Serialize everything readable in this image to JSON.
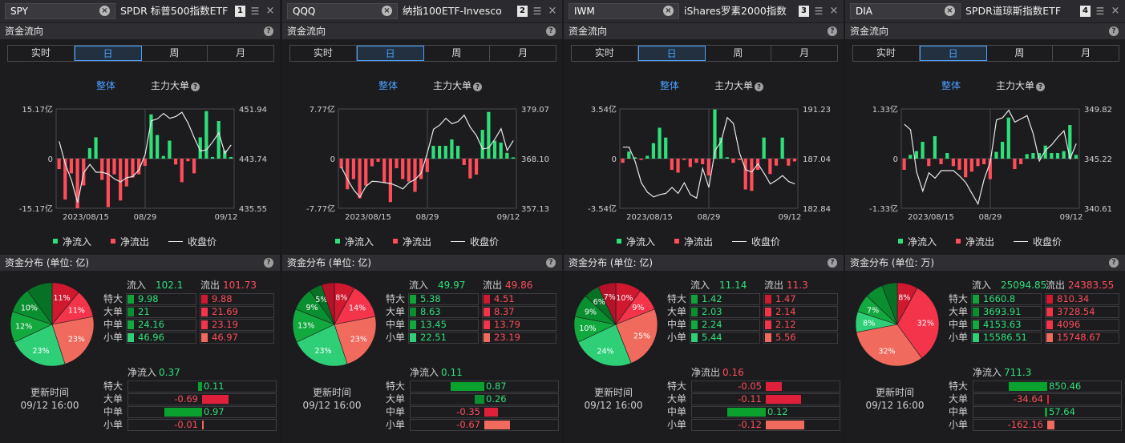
{
  "colors": {
    "inflow": "#2ee07a",
    "outflow": "#ff4d5a",
    "accent": "#4aa0ff",
    "close_line": "#e8e8e8"
  },
  "common": {
    "periods": [
      "实时",
      "日",
      "周",
      "月"
    ],
    "active_period": 1,
    "view_all": "整体",
    "view_main": "主力大单",
    "legend_in": "净流入",
    "legend_out": "净流出",
    "legend_close": "收盘价",
    "flow_title": "资金流向",
    "rows": [
      "特大",
      "大单",
      "中单",
      "小单"
    ],
    "in_label": "流入",
    "out_label": "流出",
    "update_label": "更新时间",
    "update_value": "09/12 16:00",
    "x_labels": [
      "2023/08/15",
      "08/29",
      "09/12"
    ],
    "icons": {
      "clear": "clear-icon",
      "help": "help-icon",
      "adjust": "adjust-icon",
      "close": "close-icon"
    }
  },
  "panels": [
    {
      "symbol": "SPY",
      "name": "SPDR 标普500指数ETF",
      "index": "1",
      "chart_data": {
        "type": "bar+line",
        "y_left": [
          "15.17亿",
          "0",
          "-15.17亿"
        ],
        "y_right": [
          "451.94",
          "443.74",
          "435.55"
        ],
        "y_range": [
          -15.17,
          15.17
        ],
        "close_range": [
          435.55,
          451.94
        ],
        "values": [
          -3.2,
          -12.5,
          -4.5,
          -15.5,
          -8.2,
          3.2,
          6.5,
          -6.5,
          -14.8,
          -4.8,
          -12.8,
          -8.5,
          -5.8,
          -4.8,
          -2.2,
          13.5,
          7.2,
          0.8,
          5.5,
          -1.8,
          -7.2,
          -0.8,
          -4.5,
          6.5,
          14.5,
          0.5,
          11.5,
          2.5,
          0.5
        ],
        "close": [
          446.6,
          442.8,
          440.2,
          436.5,
          441.4,
          442.8,
          441.5,
          441.5,
          441.2,
          440.4,
          439.9,
          440.6,
          440.8,
          441.9,
          444.4,
          450.0,
          450.3,
          451.2,
          450.4,
          450.7,
          451.4,
          449.6,
          447.2,
          445.0,
          445.2,
          446.5,
          448.0,
          444.6,
          446.0
        ]
      },
      "dist": {
        "title": "资金分布 (单位: 亿)",
        "in_total": "102.1",
        "out_total": "101.73",
        "in": [
          "9.98",
          "21",
          "24.16",
          "46.96"
        ],
        "out": [
          "9.88",
          "21.69",
          "23.19",
          "46.97"
        ],
        "pie": [
          {
            "p": 11,
            "label": "11%"
          },
          {
            "p": 11,
            "label": "11%"
          },
          {
            "p": 23,
            "label": "23%"
          },
          {
            "p": 23,
            "label": "23%"
          },
          {
            "p": 12,
            "label": "12%"
          },
          {
            "p": 10,
            "label": "10%"
          },
          {
            "p": 10,
            "label": ""
          }
        ],
        "net_label": "净流入",
        "net_value": "0.37",
        "net": [
          {
            "v": 0.11,
            "t": "0.11"
          },
          {
            "v": -0.69,
            "t": "-0.69"
          },
          {
            "v": 0.97,
            "t": "0.97"
          },
          {
            "v": -0.01,
            "t": "-0.01"
          }
        ],
        "net_max": 1.0
      }
    },
    {
      "symbol": "QQQ",
      "name": "纳指100ETF-Invesco",
      "index": "2",
      "chart_data": {
        "type": "bar+line",
        "y_left": [
          "7.77亿",
          "0",
          "-7.77亿"
        ],
        "y_right": [
          "379.07",
          "368.10",
          "357.13"
        ],
        "y_range": [
          -7.77,
          7.77
        ],
        "close_range": [
          357.13,
          379.07
        ],
        "values": [
          -1.5,
          -4.8,
          -3.2,
          -6.2,
          -4.2,
          -1.2,
          -0.5,
          -3.8,
          -6.8,
          -1.5,
          -3.2,
          -3.6,
          -5.2,
          -3.2,
          -2.1,
          2.0,
          2.0,
          2.0,
          3.0,
          2.0,
          -1.0,
          -3.1,
          -2.5,
          4.5,
          7.3,
          2.8,
          2.5,
          0.9,
          0.2
        ],
        "close": [
          366.2,
          363.5,
          361.2,
          359.6,
          362.0,
          363.1,
          363.0,
          362.8,
          362.6,
          362.1,
          361.4,
          362.8,
          363.5,
          364.9,
          369.4,
          374.6,
          375.5,
          377.0,
          375.8,
          376.3,
          377.7,
          375.0,
          373.2,
          370.2,
          370.5,
          372.4,
          374.7,
          369.9,
          372.1
        ]
      },
      "dist": {
        "title": "资金分布 (单位: 亿)",
        "in_total": "49.97",
        "out_total": "49.86",
        "in": [
          "5.38",
          "8.63",
          "13.45",
          "22.51"
        ],
        "out": [
          "4.51",
          "8.37",
          "13.79",
          "23.19"
        ],
        "pie": [
          {
            "p": 8,
            "label": "8%"
          },
          {
            "p": 14,
            "label": "14%"
          },
          {
            "p": 23,
            "label": "23%"
          },
          {
            "p": 23,
            "label": "23%"
          },
          {
            "p": 13,
            "label": "13%"
          },
          {
            "p": 9,
            "label": "9%"
          },
          {
            "p": 5,
            "label": "5%"
          },
          {
            "p": 5,
            "label": ""
          }
        ],
        "net_label": "净流入",
        "net_value": "0.11",
        "net": [
          {
            "v": 0.87,
            "t": "0.87"
          },
          {
            "v": 0.26,
            "t": "0.26"
          },
          {
            "v": -0.35,
            "t": "-0.35"
          },
          {
            "v": -0.67,
            "t": "-0.67"
          }
        ],
        "net_max": 1.0
      }
    },
    {
      "symbol": "IWM",
      "name": "iShares罗素2000指数",
      "index": "3",
      "chart_data": {
        "type": "bar+line",
        "y_left": [
          "3.54亿",
          "0",
          "-3.54亿"
        ],
        "y_right": [
          "191.23",
          "187.04",
          "182.84"
        ],
        "y_range": [
          -3.54,
          3.54
        ],
        "close_range": [
          182.84,
          191.23
        ],
        "values": [
          -0.3,
          0.5,
          0.1,
          -0.1,
          0.2,
          1.1,
          2.2,
          1.5,
          -0.8,
          -1.0,
          -0.1,
          -0.6,
          -0.3,
          -0.4,
          -1.2,
          3.5,
          1.5,
          0.1,
          -0.3,
          -0.1,
          -2.2,
          -2.3,
          -0.8,
          1.5,
          -1.1,
          -0.5,
          1.5,
          -0.5,
          -0.2
        ],
        "close": [
          188.0,
          188.0,
          186.8,
          185.0,
          184.2,
          183.8,
          184.0,
          184.1,
          184.6,
          184.1,
          185.0,
          184.0,
          183.7,
          186.2,
          184.6,
          187.7,
          188.5,
          190.5,
          190.0,
          187.5,
          186.1,
          185.9,
          186.6,
          185.8,
          184.9,
          185.2,
          185.6,
          185.1,
          184.9
        ]
      },
      "dist": {
        "title": "资金分布 (单位: 亿)",
        "in_total": "11.14",
        "out_total": "11.3",
        "in": [
          "1.42",
          "2.03",
          "2.24",
          "5.44"
        ],
        "out": [
          "1.47",
          "2.14",
          "2.12",
          "5.56"
        ],
        "pie": [
          {
            "p": 10,
            "label": "10%"
          },
          {
            "p": 9,
            "label": "9%"
          },
          {
            "p": 25,
            "label": "25%"
          },
          {
            "p": 24,
            "label": "24%"
          },
          {
            "p": 10,
            "label": "10%"
          },
          {
            "p": 9,
            "label": "9%"
          },
          {
            "p": 6,
            "label": "6%"
          },
          {
            "p": 7,
            "label": "7%"
          }
        ],
        "net_label": "净流出",
        "net_value": "0.16",
        "net": [
          {
            "v": -0.05,
            "t": "-0.05"
          },
          {
            "v": -0.11,
            "t": "-0.11"
          },
          {
            "v": 0.12,
            "t": "0.12"
          },
          {
            "v": -0.12,
            "t": "-0.12"
          }
        ],
        "net_max": 0.12
      }
    },
    {
      "symbol": "DIA",
      "name": "SPDR道琼斯指数ETF",
      "index": "4",
      "chart_data": {
        "type": "bar+line",
        "y_left": [
          "1.33亿",
          "0",
          "-1.33亿"
        ],
        "y_right": [
          "349.82",
          "345.22",
          "340.61"
        ],
        "y_range": [
          -1.33,
          1.33
        ],
        "close_range": [
          340.61,
          349.82
        ],
        "values": [
          -0.3,
          0.1,
          0.2,
          0.45,
          -0.2,
          0.6,
          -0.15,
          0.15,
          -0.2,
          -0.3,
          -0.5,
          -0.35,
          -0.2,
          -0.15,
          -0.55,
          0.18,
          0.45,
          1.1,
          -0.28,
          -0.15,
          0.12,
          0.15,
          0.15,
          0.35,
          0.15,
          0.15,
          0.2,
          0.9,
          0.1
        ],
        "close": [
          348.4,
          347.9,
          344.0,
          342.2,
          343.9,
          343.4,
          344.1,
          344.1,
          344.1,
          343.6,
          343.0,
          342.0,
          341.0,
          343.3,
          344.9,
          348.8,
          349.0,
          349.7,
          348.6,
          348.9,
          349.2,
          347.5,
          345.0,
          346.0,
          346.5,
          347.2,
          347.8,
          345.2,
          346.6
        ]
      },
      "dist": {
        "title": "资金分布 (单位: 万)",
        "in_total": "25094.85",
        "out_total": "24383.55",
        "in": [
          "1660.8",
          "3693.91",
          "4153.63",
          "15586.51"
        ],
        "out": [
          "810.34",
          "3728.54",
          "4096",
          "15748.67"
        ],
        "pie": [
          {
            "p": 8,
            "label": "8%"
          },
          {
            "p": 32,
            "label": "32%"
          },
          {
            "p": 32,
            "label": "32%"
          },
          {
            "p": 8,
            "label": "8%"
          },
          {
            "p": 7,
            "label": "7%"
          },
          {
            "p": 7,
            "label": ""
          },
          {
            "p": 6,
            "label": ""
          }
        ],
        "net_label": "净流入",
        "net_value": "711.3",
        "net": [
          {
            "v": 850.46,
            "t": "850.46"
          },
          {
            "v": -34.64,
            "t": "-34.64"
          },
          {
            "v": 57.64,
            "t": "57.64"
          },
          {
            "v": -162.16,
            "t": "-162.16"
          }
        ],
        "net_max": 850.46
      }
    }
  ]
}
